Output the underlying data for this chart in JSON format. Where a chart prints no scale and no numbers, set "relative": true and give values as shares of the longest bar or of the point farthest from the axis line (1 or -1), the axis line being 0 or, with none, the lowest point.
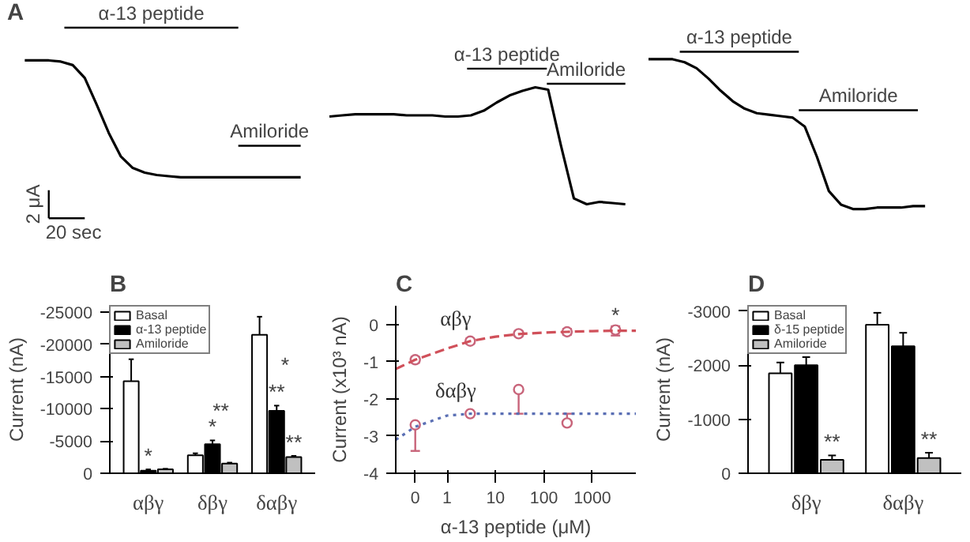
{
  "chart_data": [
    {
      "type": "line",
      "title": "A",
      "relative": true,
      "categories": [
        null,
        null,
        null,
        null,
        null,
        null,
        null,
        null,
        null,
        null,
        null,
        null,
        null,
        null,
        null,
        null,
        null,
        null,
        null,
        null,
        null,
        null,
        null,
        null
      ],
      "series": [
        {
          "color": "#000000",
          "values": [
            1,
            1,
            1,
            0.99,
            0.96,
            0.85,
            0.62,
            0.38,
            0.18,
            0.08,
            0.04,
            0.02,
            0.01,
            0,
            0,
            0,
            0,
            0,
            0,
            0,
            0,
            0,
            0,
            0
          ]
        }
      ],
      "annotations": [
        "α-13 peptide",
        "Amiloride",
        "2 μA",
        "20 sec"
      ]
    },
    {
      "type": "line",
      "relative": true,
      "categories": [
        null,
        null,
        null,
        null,
        null,
        null,
        null,
        null,
        null,
        null,
        null,
        null,
        null,
        null,
        null,
        null,
        null,
        null,
        null,
        null,
        null,
        null,
        null,
        null
      ],
      "series": [
        {
          "color": "#000000",
          "values": [
            0.75,
            0.76,
            0.77,
            0.77,
            0.77,
            0.77,
            0.76,
            0.76,
            0.76,
            0.75,
            0.75,
            0.76,
            0.8,
            0.87,
            0.93,
            0.97,
            1,
            0.98,
            0.5,
            0.05,
            0,
            0.02,
            0.01,
            0
          ]
        }
      ],
      "annotations": [
        "α-13 peptide",
        "Amiloride"
      ]
    },
    {
      "type": "line",
      "relative": true,
      "categories": [
        null,
        null,
        null,
        null,
        null,
        null,
        null,
        null,
        null,
        null,
        null,
        null,
        null,
        null,
        null,
        null,
        null,
        null,
        null,
        null,
        null,
        null,
        null,
        null
      ],
      "series": [
        {
          "color": "#000000",
          "values": [
            1,
            1,
            1,
            0.98,
            0.94,
            0.87,
            0.79,
            0.72,
            0.67,
            0.64,
            0.63,
            0.62,
            0.61,
            0.55,
            0.35,
            0.12,
            0.03,
            0,
            0,
            0.01,
            0.01,
            0.01,
            0.02,
            0.02
          ]
        }
      ],
      "annotations": [
        "α-13 peptide",
        "Amiloride"
      ]
    },
    {
      "type": "bar",
      "title": "B",
      "ylabel": "Current (nA)",
      "categories": [
        "αβγ",
        "δβγ",
        "δαβγ"
      ],
      "ylim": [
        0,
        -26000
      ],
      "yticks": [
        0,
        -5000,
        -10000,
        -15000,
        -20000,
        -25000
      ],
      "legend": "top left",
      "series": [
        {
          "name": "Basal",
          "color": "#ffffff",
          "values": [
            -14300,
            -2800,
            -21500
          ],
          "errors": [
            [
              -14300,
              -17700
            ],
            [
              -2800,
              -3100
            ],
            [
              -21500,
              -24300
            ]
          ]
        },
        {
          "name": "α-13 peptide",
          "color": "#000000",
          "values": [
            -400,
            -4500,
            -9700
          ],
          "errors": [
            [
              -400,
              -600
            ],
            [
              -4500,
              -5100
            ],
            [
              -9700,
              -10500
            ]
          ],
          "value_labels": [
            "*",
            "*",
            "**"
          ]
        },
        {
          "name": "Amiloride",
          "color": "#c0c0c0",
          "values": [
            -600,
            -1500,
            -2500
          ],
          "errors": [
            [
              -600,
              -700
            ],
            [
              -1500,
              -1650
            ],
            [
              -2500,
              -2700
            ]
          ],
          "value_labels": [
            null,
            null,
            "**"
          ]
        }
      ],
      "annotations": [
        "**",
        "*"
      ]
    },
    {
      "type": "line",
      "title": "C",
      "xlabel": "α-13 peptide (μM)",
      "ylabel": "Current (x10³ nA)",
      "log": "x",
      "xlim": [
        0.087,
        7900
      ],
      "xticks": [
        {
          "value": 0.22,
          "label": "0"
        },
        1,
        10,
        100,
        1000
      ],
      "ylim": [
        -4,
        0.5
      ],
      "yticks": [
        0,
        -1,
        -2,
        -3,
        -4
      ],
      "series": [
        {
          "name": "αβγ",
          "type": "scatter",
          "marker": "circle",
          "color": "#c8647a",
          "x": [
            0.22,
            3,
            30,
            300,
            3000
          ],
          "values": [
            -0.95,
            -0.45,
            -0.25,
            -0.2,
            -0.15
          ],
          "errors": [
            [
              -1.03,
              -0.87
            ],
            [
              -0.52,
              -0.38
            ],
            [
              -0.32,
              -0.18
            ],
            [
              -0.28,
              -0.12
            ],
            [
              -0.3,
              -0.05
            ]
          ]
        },
        {
          "type": "line",
          "line_style": "dashed",
          "color": "#d0505a",
          "x": [
            0.087,
            0.22,
            1,
            3,
            10,
            30,
            100,
            300,
            1000,
            3000,
            7900
          ],
          "values": [
            -1.2,
            -0.95,
            -0.65,
            -0.45,
            -0.33,
            -0.26,
            -0.22,
            -0.2,
            -0.18,
            -0.17,
            -0.17
          ]
        },
        {
          "name": "δαβγ",
          "type": "scatter",
          "marker": "circle",
          "color": "#c8647a",
          "x": [
            0.22,
            3,
            30,
            300
          ],
          "values": [
            -2.7,
            -2.4,
            -1.75,
            -2.65
          ],
          "errors": [
            [
              -3.4,
              -2.7
            ],
            null,
            [
              -2.4,
              -1.75
            ],
            [
              -2.65,
              -2.4
            ]
          ]
        },
        {
          "type": "line",
          "line_style": "dotted",
          "color": "#5a6fb4",
          "x": [
            0.087,
            0.22,
            1,
            3,
            10,
            30,
            100,
            300,
            1000,
            3000,
            7900
          ],
          "values": [
            -3.1,
            -2.75,
            -2.45,
            -2.4,
            -2.4,
            -2.4,
            -2.4,
            -2.4,
            -2.4,
            -2.4,
            -2.4
          ]
        }
      ],
      "annotations": [
        "*"
      ]
    },
    {
      "type": "bar",
      "title": "D",
      "ylabel": "Current (nA)",
      "categories": [
        "δβγ",
        "δαβγ"
      ],
      "ylim": [
        0,
        -3100
      ],
      "yticks": [
        0,
        -1000,
        -2000,
        -3000
      ],
      "legend": "top left",
      "series": [
        {
          "name": "Basal",
          "color": "#ffffff",
          "values": [
            -1850,
            -2750
          ],
          "errors": [
            [
              -1850,
              -2050
            ],
            [
              -2750,
              -2970
            ]
          ]
        },
        {
          "name": "δ-15 peptide",
          "color": "#000000",
          "values": [
            -2000,
            -2350
          ],
          "errors": [
            [
              -2000,
              -2150
            ],
            [
              -2350,
              -2600
            ]
          ]
        },
        {
          "name": "Amiloride",
          "color": "#c0c0c0",
          "values": [
            -250,
            -280
          ],
          "errors": [
            [
              -250,
              -330
            ],
            [
              -280,
              -380
            ]
          ],
          "value_labels": [
            "**",
            "**"
          ]
        }
      ]
    }
  ]
}
